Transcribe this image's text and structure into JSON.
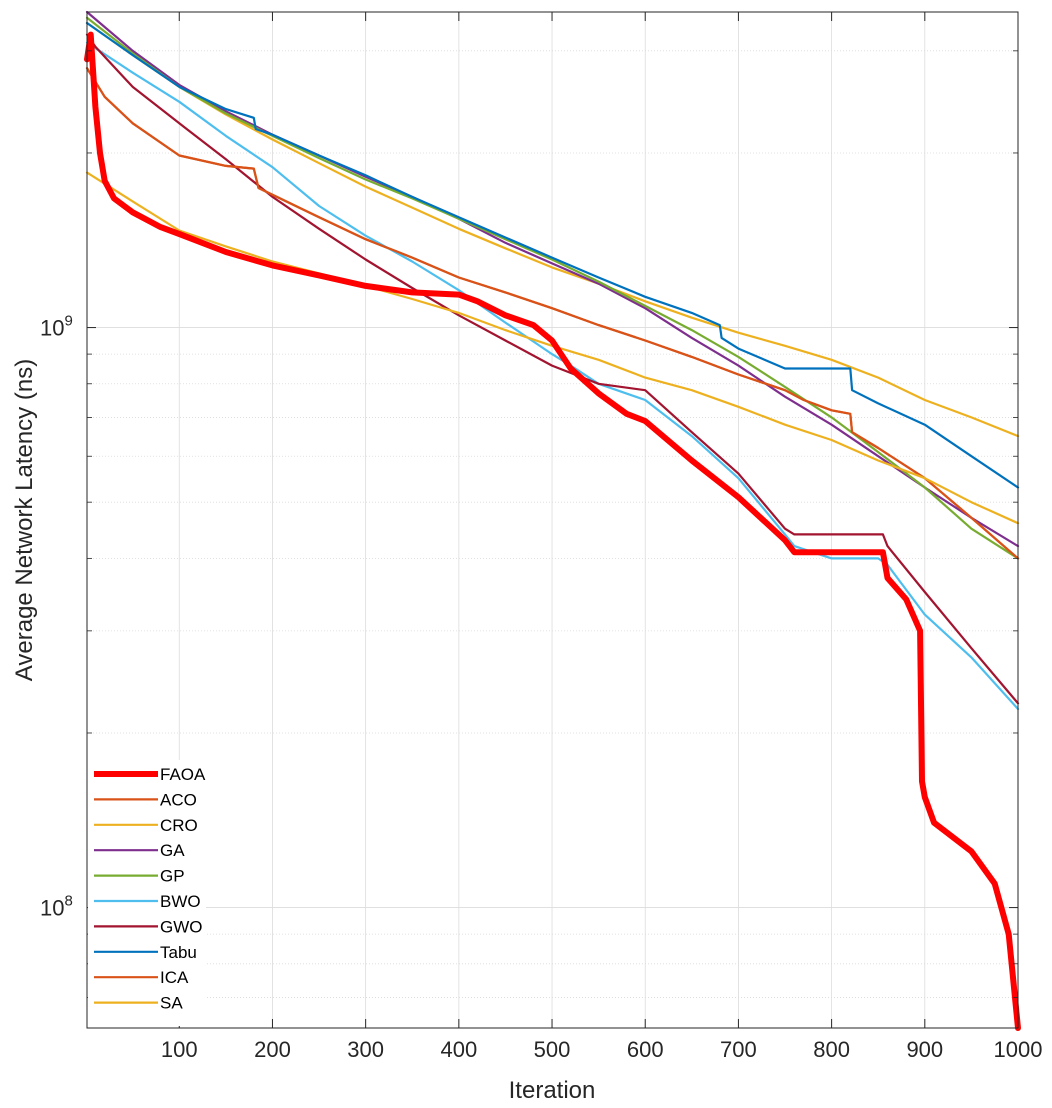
{
  "chart_data": {
    "type": "line",
    "title": "",
    "xlabel": "Iteration",
    "ylabel": "Average Network Latency (ns)",
    "xlim": [
      1,
      1000
    ],
    "ylim": [
      62000000,
      3500000000
    ],
    "yscale": "log",
    "grid": true,
    "legend_position": "bottom-left",
    "x_ticks": [
      100,
      200,
      300,
      400,
      500,
      600,
      700,
      800,
      900,
      1000
    ],
    "x_tick_labels": [
      "100",
      "200",
      "300",
      "400",
      "500",
      "600",
      "700",
      "800",
      "900",
      "1000"
    ],
    "y_ticks": [
      100000000,
      1000000000
    ],
    "y_tick_labels": [
      {
        "base": "10",
        "exp": "8"
      },
      {
        "base": "10",
        "exp": "9"
      }
    ],
    "series": [
      {
        "name": "FAOA",
        "color": "#FF0000",
        "bold": true,
        "x": [
          1,
          5,
          8,
          10,
          15,
          20,
          30,
          50,
          80,
          100,
          150,
          200,
          250,
          300,
          350,
          400,
          420,
          450,
          480,
          500,
          520,
          550,
          580,
          600,
          650,
          700,
          750,
          760,
          800,
          855,
          860,
          880,
          895,
          897,
          900,
          910,
          950,
          975,
          990,
          1000
        ],
        "y": [
          2900000000,
          3200000000,
          2700000000,
          2400000000,
          2000000000,
          1790000000,
          1670000000,
          1580000000,
          1490000000,
          1450000000,
          1350000000,
          1280000000,
          1230000000,
          1180000000,
          1150000000,
          1140000000,
          1110000000,
          1050000000,
          1010000000,
          950000000,
          850000000,
          770000000,
          710000000,
          690000000,
          590000000,
          510000000,
          430000000,
          410000000,
          410000000,
          410000000,
          370000000,
          340000000,
          300000000,
          165000000,
          155000000,
          140000000,
          125000000,
          110000000,
          90000000,
          62000000
        ]
      },
      {
        "name": "ACO",
        "color": "#D95319",
        "x": [
          1,
          20,
          50,
          100,
          150,
          180,
          185,
          250,
          300,
          350,
          400,
          450,
          500,
          550,
          600,
          650,
          700,
          750,
          770,
          800,
          820,
          822,
          850,
          900,
          950,
          1000
        ],
        "y": [
          2800000000,
          2500000000,
          2250000000,
          1980000000,
          1900000000,
          1880000000,
          1740000000,
          1550000000,
          1420000000,
          1320000000,
          1220000000,
          1150000000,
          1080000000,
          1010000000,
          950000000,
          890000000,
          830000000,
          780000000,
          750000000,
          720000000,
          710000000,
          660000000,
          620000000,
          550000000,
          470000000,
          400000000
        ]
      },
      {
        "name": "CRO",
        "color": "#EDB120",
        "x": [
          1,
          50,
          100,
          150,
          200,
          250,
          300,
          350,
          400,
          450,
          500,
          550,
          600,
          650,
          700,
          750,
          800,
          850,
          900,
          950,
          1000
        ],
        "y": [
          3350000000,
          2950000000,
          2600000000,
          2330000000,
          2110000000,
          1920000000,
          1750000000,
          1610000000,
          1480000000,
          1370000000,
          1270000000,
          1190000000,
          1110000000,
          1040000000,
          980000000,
          930000000,
          880000000,
          820000000,
          750000000,
          700000000,
          650000000
        ]
      },
      {
        "name": "GA",
        "color": "#7E2F8E",
        "x": [
          1,
          50,
          100,
          150,
          200,
          250,
          300,
          350,
          400,
          450,
          500,
          550,
          600,
          650,
          700,
          750,
          800,
          850,
          900,
          950,
          1000
        ],
        "y": [
          3500000000,
          3000000000,
          2620000000,
          2360000000,
          2150000000,
          1980000000,
          1820000000,
          1680000000,
          1540000000,
          1400000000,
          1290000000,
          1190000000,
          1080000000,
          960000000,
          860000000,
          760000000,
          680000000,
          600000000,
          530000000,
          470000000,
          420000000
        ]
      },
      {
        "name": "GP",
        "color": "#77AC30",
        "x": [
          1,
          50,
          100,
          150,
          200,
          250,
          300,
          350,
          400,
          450,
          500,
          550,
          600,
          650,
          700,
          750,
          800,
          850,
          900,
          950,
          1000
        ],
        "y": [
          3420000000,
          2970000000,
          2600000000,
          2340000000,
          2140000000,
          1960000000,
          1800000000,
          1670000000,
          1540000000,
          1420000000,
          1310000000,
          1200000000,
          1090000000,
          990000000,
          890000000,
          790000000,
          700000000,
          610000000,
          530000000,
          450000000,
          400000000
        ]
      },
      {
        "name": "BWO",
        "color": "#4DBEEE",
        "x": [
          1,
          50,
          100,
          150,
          200,
          250,
          300,
          350,
          400,
          450,
          500,
          520,
          550,
          600,
          650,
          700,
          750,
          760,
          800,
          850,
          860,
          900,
          950,
          1000
        ],
        "y": [
          3100000000,
          2750000000,
          2450000000,
          2140000000,
          1890000000,
          1620000000,
          1440000000,
          1300000000,
          1160000000,
          1020000000,
          900000000,
          860000000,
          800000000,
          750000000,
          650000000,
          550000000,
          440000000,
          420000000,
          400000000,
          400000000,
          390000000,
          320000000,
          270000000,
          220000000
        ]
      },
      {
        "name": "GWO",
        "color": "#A2142F",
        "x": [
          1,
          10,
          50,
          100,
          150,
          200,
          250,
          300,
          350,
          400,
          450,
          500,
          550,
          600,
          650,
          700,
          750,
          760,
          800,
          855,
          860,
          900,
          950,
          1000
        ],
        "y": [
          3200000000,
          3050000000,
          2600000000,
          2250000000,
          1950000000,
          1680000000,
          1480000000,
          1310000000,
          1170000000,
          1050000000,
          950000000,
          860000000,
          800000000,
          780000000,
          660000000,
          560000000,
          450000000,
          440000000,
          440000000,
          440000000,
          420000000,
          350000000,
          280000000,
          225000000
        ]
      },
      {
        "name": "Tabu",
        "color": "#0072BD",
        "x": [
          1,
          50,
          100,
          150,
          180,
          182,
          200,
          250,
          300,
          350,
          400,
          450,
          500,
          550,
          600,
          650,
          680,
          682,
          700,
          750,
          800,
          820,
          822,
          850,
          900,
          950,
          1000
        ],
        "y": [
          3350000000,
          2950000000,
          2600000000,
          2380000000,
          2300000000,
          2200000000,
          2150000000,
          1980000000,
          1830000000,
          1680000000,
          1550000000,
          1430000000,
          1320000000,
          1220000000,
          1130000000,
          1060000000,
          1010000000,
          960000000,
          920000000,
          850000000,
          850000000,
          850000000,
          780000000,
          740000000,
          680000000,
          600000000,
          530000000
        ]
      },
      {
        "name": "ICA",
        "color": "#D95319",
        "x": [
          1,
          20,
          50,
          100,
          150,
          180,
          185,
          250,
          300,
          350,
          400,
          450,
          500,
          550,
          600,
          650,
          700,
          750,
          770,
          800,
          820,
          822,
          850,
          900,
          950,
          1000
        ],
        "y": [
          2800000000,
          2500000000,
          2250000000,
          1980000000,
          1900000000,
          1880000000,
          1740000000,
          1550000000,
          1420000000,
          1320000000,
          1220000000,
          1150000000,
          1080000000,
          1010000000,
          950000000,
          890000000,
          830000000,
          780000000,
          750000000,
          720000000,
          710000000,
          660000000,
          620000000,
          550000000,
          470000000,
          400000000
        ]
      },
      {
        "name": "SA",
        "color": "#EDB120",
        "x": [
          1,
          50,
          100,
          150,
          200,
          250,
          300,
          350,
          400,
          450,
          500,
          550,
          600,
          650,
          700,
          750,
          800,
          850,
          900,
          950,
          1000
        ],
        "y": [
          1850000000,
          1650000000,
          1470000000,
          1380000000,
          1300000000,
          1240000000,
          1180000000,
          1120000000,
          1060000000,
          990000000,
          930000000,
          880000000,
          820000000,
          780000000,
          730000000,
          680000000,
          640000000,
          590000000,
          550000000,
          500000000,
          460000000
        ]
      }
    ]
  }
}
